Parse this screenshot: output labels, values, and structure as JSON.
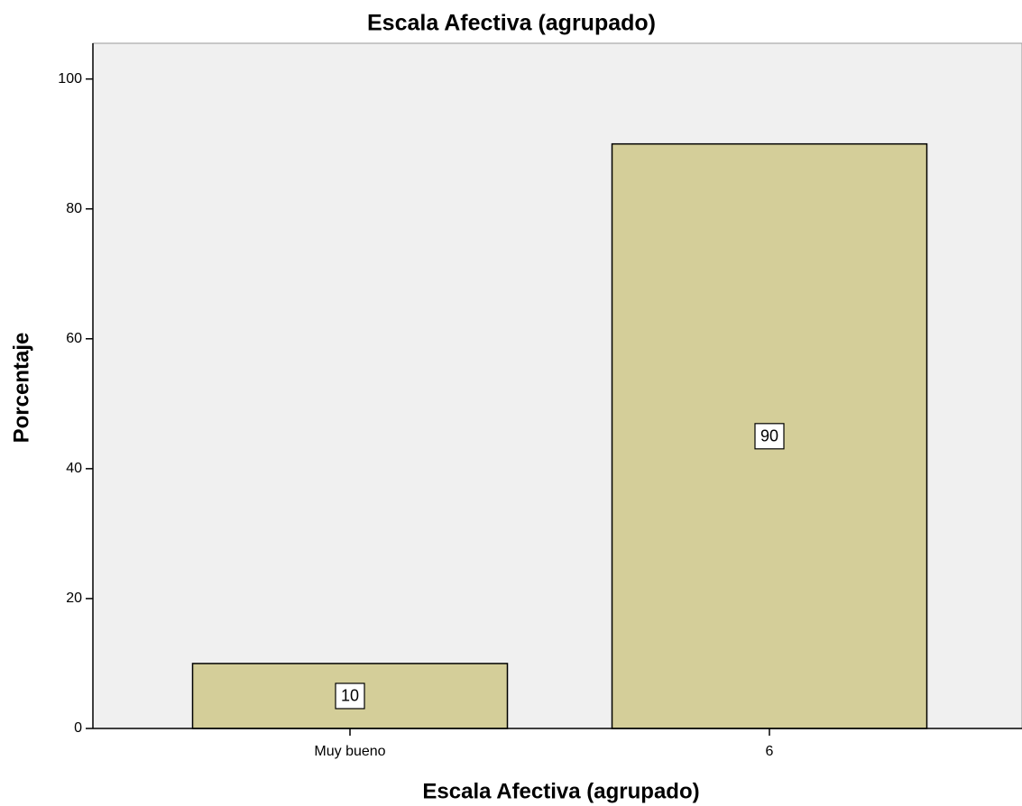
{
  "chart_data": {
    "type": "bar",
    "title": "Escala Afectiva (agrupado)",
    "xlabel": "Escala Afectiva (agrupado)",
    "ylabel": "Porcentaje",
    "categories": [
      "Muy bueno",
      "6"
    ],
    "values": [
      10,
      90
    ],
    "color": "#d4ce99",
    "ylim": [
      0,
      105.5
    ],
    "yticks": [
      0,
      20,
      40,
      60,
      80,
      100
    ],
    "grid": false
  }
}
